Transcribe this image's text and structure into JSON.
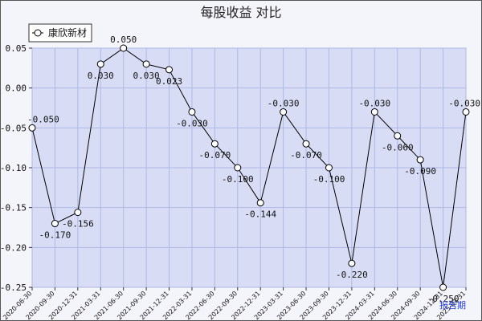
{
  "chart_data": {
    "type": "line",
    "title": "每股收益  对比",
    "xlabel": "",
    "ylabel": "",
    "ylim": [
      -0.25,
      0.05
    ],
    "yticks": [
      0.05,
      0.0,
      -0.05,
      -0.1,
      -0.15,
      -0.2,
      -0.25
    ],
    "ytick_labels": [
      "0.05",
      "0.00",
      "-0.05",
      "-0.10",
      "-0.15",
      "-0.20",
      "-0.25"
    ],
    "grid": true,
    "legend_position": "top-left",
    "categories": [
      "2020-06-30",
      "2020-09-30",
      "2020-12-31",
      "2021-03-31",
      "2021-06-30",
      "2021-09-30",
      "2021-12-31",
      "2022-03-31",
      "2022-06-30",
      "2022-09-30",
      "2022-12-31",
      "2023-03-31",
      "2023-06-30",
      "2023-09-30",
      "2023-12-31",
      "2024-03-31",
      "2024-06-30",
      "2024-09-30",
      "2024-12-31",
      "2025-03-31"
    ],
    "series": [
      {
        "name": "康欣新材",
        "values": [
          -0.05,
          -0.17,
          -0.156,
          0.03,
          0.05,
          0.03,
          0.023,
          -0.03,
          -0.07,
          -0.1,
          -0.144,
          -0.03,
          -0.07,
          -0.1,
          -0.22,
          -0.03,
          -0.06,
          -0.09,
          -0.25,
          -0.03
        ],
        "labels": [
          "-0.050",
          "-0.170",
          "-0.156",
          "0.030",
          "0.050",
          "0.030",
          "0.023",
          "-0.030",
          "-0.070",
          "-0.100",
          "-0.144",
          "-0.030",
          "-0.070",
          "-0.100",
          "-0.220",
          "-0.030",
          "-0.060",
          "-0.090",
          "-0.250",
          "-0.030"
        ]
      }
    ],
    "corner_text": "报告期",
    "colors": {
      "plot_bg": "#d8ddf5",
      "outer_bg": "#f4f4fb",
      "grid": "#aeb8e6",
      "line": "#000000",
      "marker_fill": "#ffffff",
      "corner_text": "#1f3bd8"
    }
  }
}
